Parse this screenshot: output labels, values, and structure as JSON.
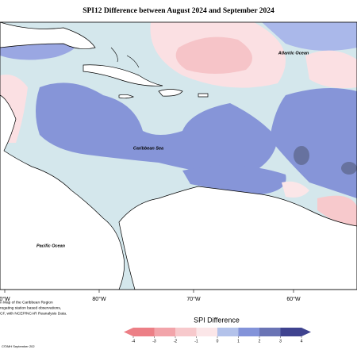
{
  "title": "SPI12 Difference between August 2024 and September 2024",
  "labels": {
    "atlantic": "Atlantic Ocean",
    "caribbean": "Caribbean Sea",
    "pacific": "Pacific Ocean"
  },
  "longitudes": [
    "0°W",
    "80°W",
    "70°W",
    "60°W"
  ],
  "note": [
    "n Map of the Caribbean Region",
    "regating station based observations,",
    "CF, with NCEP/NCAR Reanalysis Data."
  ],
  "credit": "C©IMH September 202",
  "legend": {
    "title": "SPI Difference",
    "ticks": [
      -4,
      -3,
      -2,
      -1,
      0,
      1,
      2,
      3,
      4
    ],
    "colors": [
      "#ec7f86",
      "#f2a4aa",
      "#f7c9cc",
      "#fbe6e8",
      "#d6e8ee",
      "#b3c2ea",
      "#8393d9",
      "#6a74b5",
      "#3f438f"
    ]
  }
}
